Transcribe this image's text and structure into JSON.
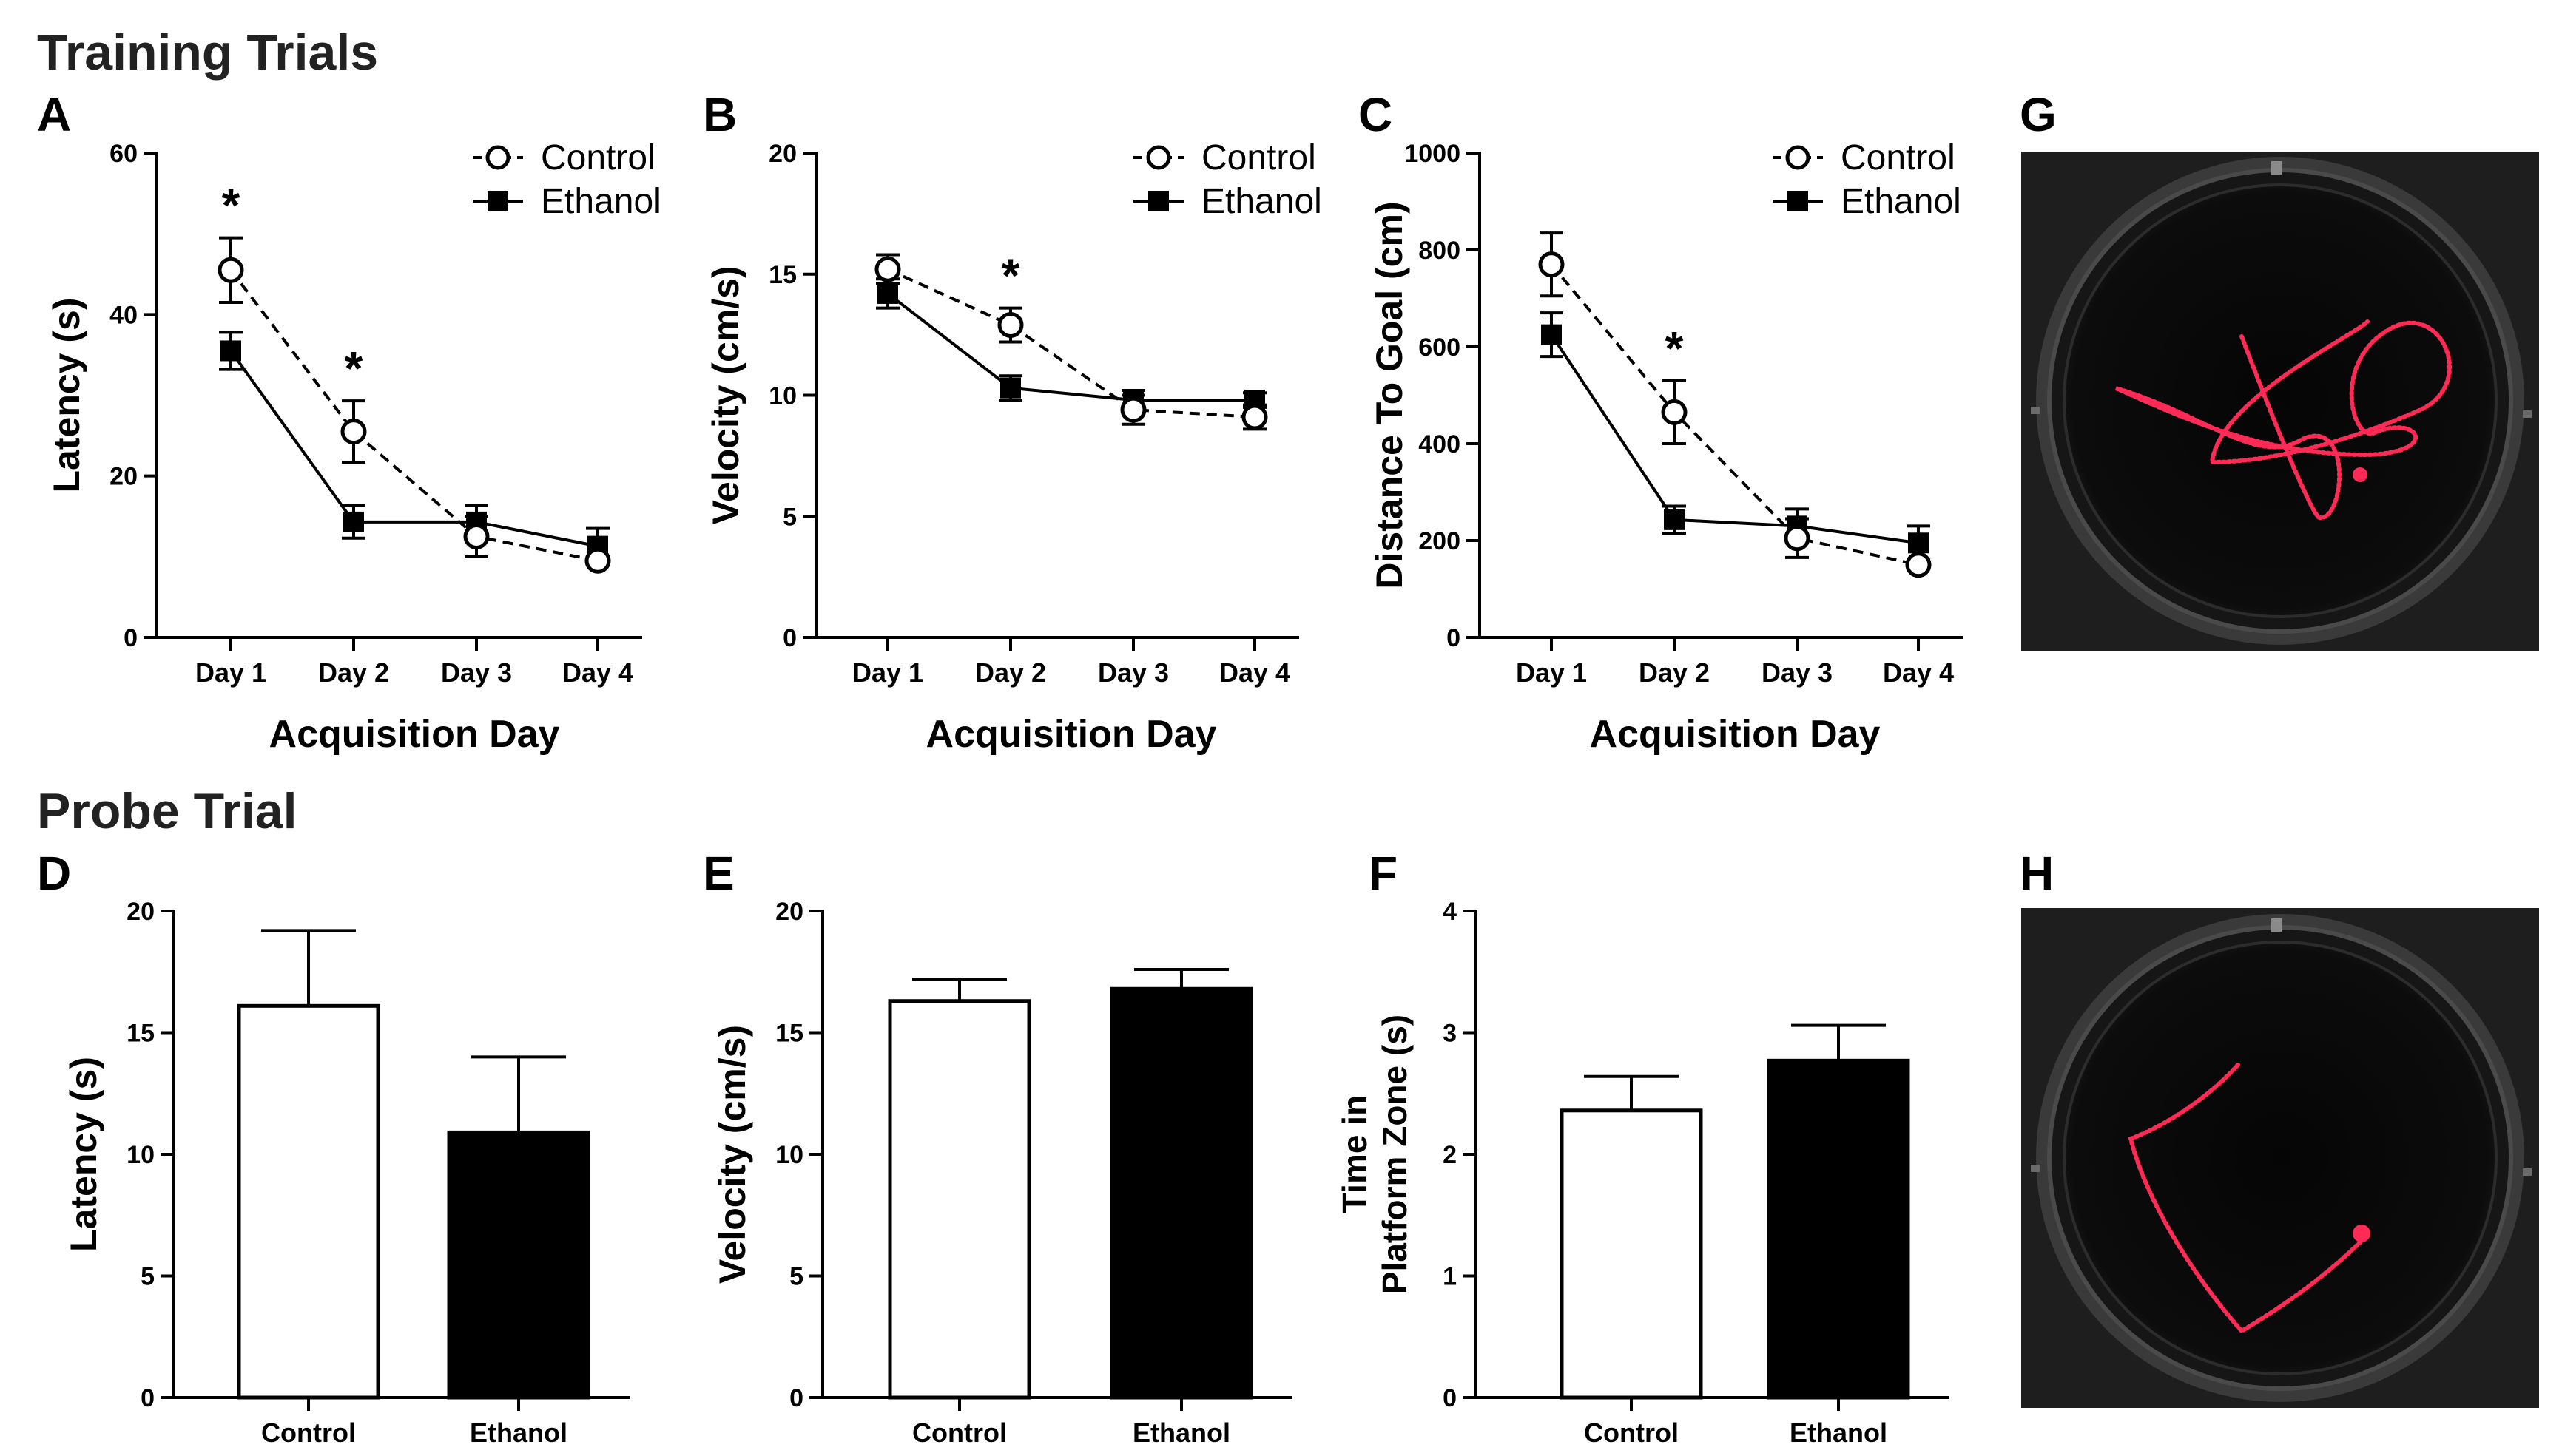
{
  "sections": {
    "training": "Training Trials",
    "probe": "Probe Trial"
  },
  "panel_letters": {
    "A": "A",
    "B": "B",
    "C": "C",
    "D": "D",
    "E": "E",
    "F": "F",
    "G": "G",
    "H": "H"
  },
  "colors": {
    "control_fill": "#ffffff",
    "ethanol_fill": "#000000",
    "axis": "#000000",
    "track": "#ff2a55",
    "pool": "#080808"
  },
  "images": {
    "G": {
      "description_name": "swim-path-training-image"
    },
    "H": {
      "description_name": "swim-path-probe-image"
    }
  },
  "chart_data": [
    {
      "id": "A",
      "type": "line",
      "xlabel": "Acquisition Day",
      "ylabel": "Latency (s)",
      "categories": [
        "Day 1",
        "Day 2",
        "Day 3",
        "Day 4"
      ],
      "ylim": [
        0,
        60
      ],
      "yticks": [
        "0",
        "20",
        "40",
        "60"
      ],
      "ytick_values": [
        0,
        20,
        40,
        60
      ],
      "legend": "top-right",
      "series": [
        {
          "name": "Control",
          "style": "open-circle-dashed",
          "values": [
            45.5,
            25.5,
            12.5,
            9.5
          ],
          "errors": [
            4,
            3.8,
            2.5,
            0
          ]
        },
        {
          "name": "Ethanol",
          "style": "filled-square-solid",
          "values": [
            35.5,
            14.3,
            14.3,
            11.3
          ],
          "errors": [
            2.3,
            2,
            2,
            2.2
          ]
        }
      ],
      "significance": [
        {
          "index": 0,
          "label": "*"
        },
        {
          "index": 1,
          "label": "*"
        }
      ]
    },
    {
      "id": "B",
      "type": "line",
      "xlabel": "Acquisition Day",
      "ylabel": "Velocity (cm/s)",
      "categories": [
        "Day 1",
        "Day 2",
        "Day 3",
        "Day 4"
      ],
      "ylim": [
        0,
        20
      ],
      "yticks": [
        "0",
        "5",
        "10",
        "15",
        "20"
      ],
      "ytick_values": [
        0,
        5,
        10,
        15,
        20
      ],
      "legend": "top-right",
      "series": [
        {
          "name": "Control",
          "style": "open-circle-dashed",
          "values": [
            15.2,
            12.9,
            9.4,
            9.1
          ],
          "errors": [
            0.6,
            0.7,
            0.6,
            0.5
          ]
        },
        {
          "name": "Ethanol",
          "style": "filled-square-solid",
          "values": [
            14.2,
            10.3,
            9.8,
            9.8
          ],
          "errors": [
            0.6,
            0.5,
            0.4,
            0.3
          ]
        }
      ],
      "significance": [
        {
          "index": 1,
          "label": "*"
        }
      ]
    },
    {
      "id": "C",
      "type": "line",
      "xlabel": "Acquisition Day",
      "ylabel": "Distance To Goal (cm)",
      "categories": [
        "Day 1",
        "Day 2",
        "Day 3",
        "Day 4"
      ],
      "ylim": [
        0,
        1000
      ],
      "yticks": [
        "0",
        "200",
        "400",
        "600",
        "800",
        "1000"
      ],
      "ytick_values": [
        0,
        200,
        400,
        600,
        800,
        1000
      ],
      "legend": "top-right",
      "series": [
        {
          "name": "Control",
          "style": "open-circle-dashed",
          "values": [
            770,
            465,
            205,
            150
          ],
          "errors": [
            65,
            65,
            40,
            0
          ]
        },
        {
          "name": "Ethanol",
          "style": "filled-square-solid",
          "values": [
            625,
            243,
            230,
            195
          ],
          "errors": [
            45,
            28,
            35,
            35
          ]
        }
      ],
      "significance": [
        {
          "index": 1,
          "label": "*"
        }
      ]
    },
    {
      "id": "D",
      "type": "bar",
      "ylabel": "Latency (s)",
      "categories": [
        "Control",
        "Ethanol"
      ],
      "values": [
        16.1,
        10.9
      ],
      "errors": [
        3.1,
        3.1
      ],
      "ylim": [
        0,
        20
      ],
      "yticks": [
        "0",
        "5",
        "10",
        "15",
        "20"
      ],
      "ytick_values": [
        0,
        5,
        10,
        15,
        20
      ]
    },
    {
      "id": "E",
      "type": "bar",
      "ylabel": "Velocity (cm/s)",
      "categories": [
        "Control",
        "Ethanol"
      ],
      "values": [
        16.3,
        16.8
      ],
      "errors": [
        0.9,
        0.8
      ],
      "ylim": [
        0,
        20
      ],
      "yticks": [
        "0",
        "5",
        "10",
        "15",
        "20"
      ],
      "ytick_values": [
        0,
        5,
        10,
        15,
        20
      ]
    },
    {
      "id": "F",
      "type": "bar",
      "ylabel_lines": [
        "Time in",
        "Platform Zone (s)"
      ],
      "categories": [
        "Control",
        "Ethanol"
      ],
      "values": [
        2.36,
        2.77
      ],
      "errors": [
        0.28,
        0.29
      ],
      "ylim": [
        0,
        4
      ],
      "yticks": [
        "0",
        "1",
        "2",
        "3",
        "4"
      ],
      "ytick_values": [
        0,
        1,
        2,
        3,
        4
      ]
    }
  ]
}
